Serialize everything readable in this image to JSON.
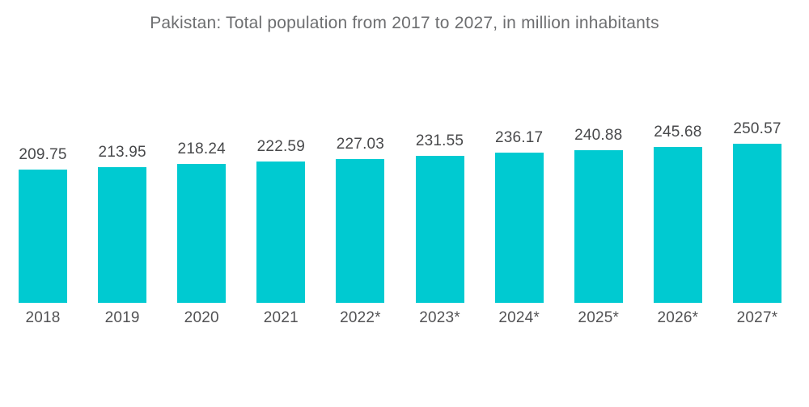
{
  "title": "Pakistan: Total population from 2017 to 2027, in million inhabitants",
  "chart_data": {
    "type": "bar",
    "title": "Pakistan: Total population from 2017 to 2027, in million inhabitants",
    "categories": [
      "2018",
      "2019",
      "2020",
      "2021",
      "2022*",
      "2023*",
      "2024*",
      "2025*",
      "2026*",
      "2027*"
    ],
    "values": [
      209.75,
      213.95,
      218.24,
      222.59,
      227.03,
      231.55,
      236.17,
      240.88,
      245.68,
      250.57
    ],
    "xlabel": "",
    "ylabel": "",
    "ylim": [
      0,
      250.57
    ],
    "grid": false,
    "legend": false,
    "data_labels": true,
    "bar_color": "#00cad1",
    "title_color": "#6d6e70",
    "value_label_color": "#48494b",
    "tick_label_color": "#525254",
    "background_color": "#ffffff"
  }
}
